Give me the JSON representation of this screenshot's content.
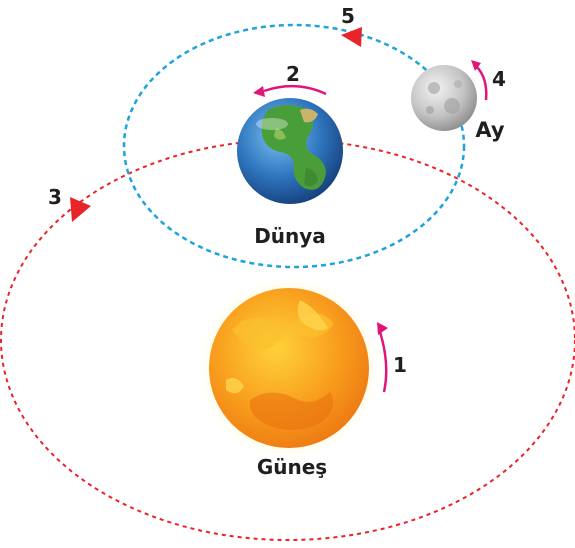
{
  "bodies": {
    "sun": "Güneş",
    "earth": "Dünya",
    "moon": "Ay"
  },
  "markers": {
    "sun_rotation": "1",
    "earth_rotation": "2",
    "earth_orbit": "3",
    "moon_rotation": "4",
    "moon_orbit": "5"
  },
  "colors": {
    "earth_orbit_path": "#e8232a",
    "moon_orbit_path": "#1fa3dc",
    "rotation_arrow": "#e0157a",
    "orbit_arrowhead": "#e8232a",
    "sun_core": "#f7941d",
    "earth_ocean": "#2f77c0",
    "moon_surface": "#c8c8c8"
  }
}
